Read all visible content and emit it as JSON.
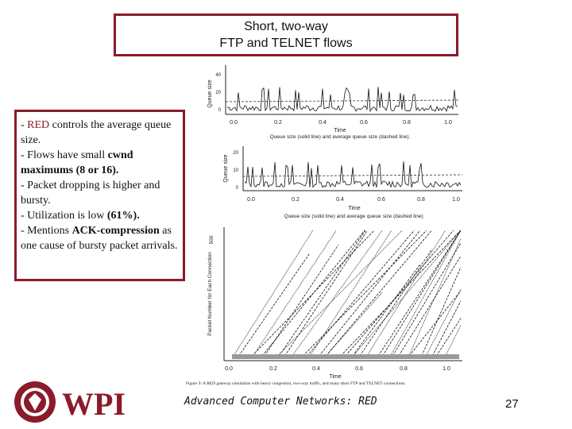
{
  "slide": {
    "title_line1": "Short, two-way",
    "title_line2": "FTP and TELNET flows"
  },
  "bullets": {
    "b1_prefix": "- ",
    "b1_red": "RED",
    "b1_rest": " controls the average queue size.",
    "b2_prefix": "- Flows have small ",
    "b2_bold": "cwnd maximums (8 or 16).",
    "b3": "- Packet dropping is higher and bursty.",
    "b4_prefix": "- Utilization is low ",
    "b4_bold": "(61%).",
    "b5_prefix": "- Mentions ",
    "b5_bold": "ACK-compression",
    "b5_rest": " as one cause of bursty packet arrivals."
  },
  "figure": {
    "panel1": {
      "ylabel": "Queue size",
      "yticks": [
        "0",
        "20",
        "40"
      ],
      "xticks": [
        "0.0",
        "0.2",
        "0.4",
        "0.6",
        "0.8",
        "1.0"
      ],
      "xlabel": "Time",
      "caption": "Queue size (solid line) and average queue size (dashed line)."
    },
    "panel2": {
      "ylabel": "Queue size",
      "yticks": [
        "0",
        "10",
        "20"
      ],
      "xticks": [
        "0.0",
        "0.2",
        "0.4",
        "0.6",
        "0.8",
        "1.0"
      ],
      "xlabel": "Time",
      "caption": "Queue size (solid line) and average queue size (dashed line)."
    },
    "panel3": {
      "ylabel": "Packet Number for Each Connection",
      "ytick_top": "500",
      "xticks": [
        "0.0",
        "0.2",
        "0.4",
        "0.6",
        "0.8",
        "1.0"
      ],
      "xlabel": "Time",
      "caption": "Figure 9: A RED gateway simulation with heavy congestion, two-way traffic, and many short FTP and TELNET connections."
    }
  },
  "footer": {
    "course": "Advanced Computer Networks:  RED",
    "page": "27",
    "logo_text": "WPI"
  },
  "colors": {
    "accent": "#8b1a2a",
    "text": "#111111"
  }
}
